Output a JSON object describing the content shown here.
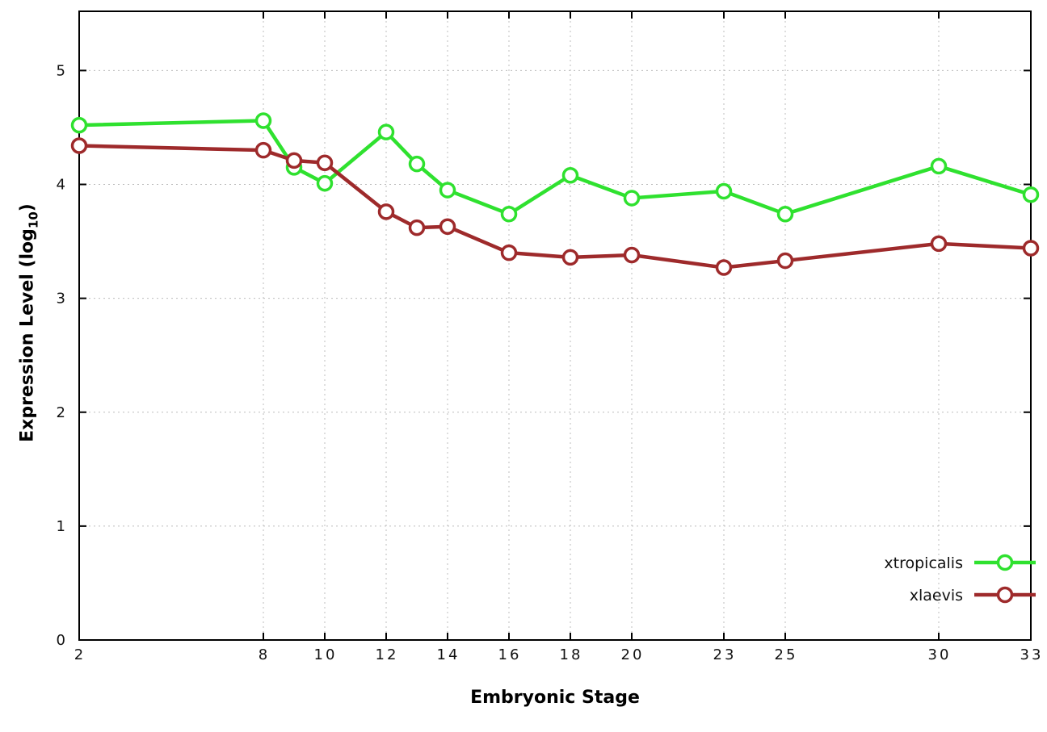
{
  "chart_data": {
    "type": "line",
    "title": "",
    "xlabel": "Embryonic Stage",
    "ylabel": "Expression Level (log10)",
    "ylabel_rich": {
      "base": "Expression Level (log",
      "sub": "10",
      "close": ")"
    },
    "x": [
      2,
      8,
      9,
      10,
      12,
      13,
      14,
      16,
      18,
      20,
      23,
      25,
      30,
      33
    ],
    "xticks": [
      2,
      8,
      10,
      12,
      14,
      16,
      18,
      20,
      23,
      25,
      30,
      33
    ],
    "yticks": [
      0,
      1,
      2,
      3,
      4,
      5
    ],
    "xlim": [
      2,
      33
    ],
    "ylim": [
      0,
      5.52
    ],
    "grid": true,
    "background": "#ffffff",
    "legend_position": "inside-bottom-right",
    "series": [
      {
        "name": "xtropicalis",
        "color": "#2fe12f",
        "values": [
          4.52,
          4.56,
          4.15,
          4.01,
          4.46,
          4.18,
          3.95,
          3.74,
          4.08,
          3.88,
          3.94,
          3.74,
          4.16,
          3.91
        ]
      },
      {
        "name": "xlaevis",
        "color": "#9e2a2b",
        "values": [
          4.34,
          4.3,
          4.21,
          4.19,
          3.76,
          3.62,
          3.63,
          3.4,
          3.36,
          3.38,
          3.27,
          3.33,
          3.48,
          3.44
        ]
      }
    ]
  }
}
